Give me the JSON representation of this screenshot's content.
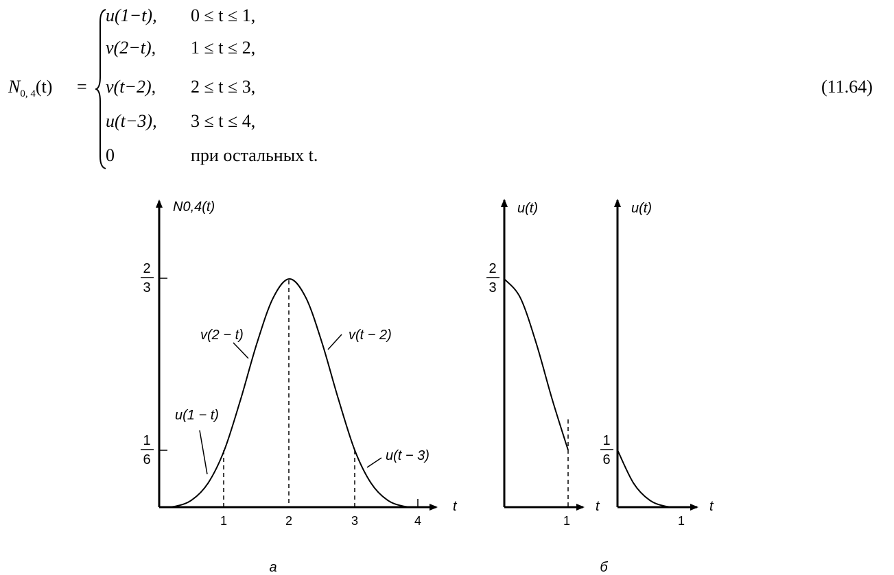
{
  "formula": {
    "lhs_func": "N",
    "lhs_sub": "0, 4",
    "lhs_arg": "(t)",
    "equals": "=",
    "cases": [
      {
        "expr": "u(1−t),",
        "cond": "0 ≤ t ≤ 1,"
      },
      {
        "expr": "v(2−t),",
        "cond": "1 ≤ t ≤ 2,"
      },
      {
        "expr": "v(t−2),",
        "cond": "2 ≤ t ≤ 3,"
      },
      {
        "expr": "u(t−3),",
        "cond": "3 ≤ t ≤ 4,"
      },
      {
        "expr": "0",
        "cond": "при остальных t."
      }
    ],
    "number": "(11.64)"
  },
  "plot_a": {
    "ylabel": "N0,4(t)",
    "xlabel": "t",
    "xticks": [
      "1",
      "2",
      "3",
      "4"
    ],
    "yticks": [
      {
        "num": "2",
        "den": "3"
      },
      {
        "num": "1",
        "den": "6"
      }
    ],
    "curve_labels": [
      "v(2 − t)",
      "v(t − 2)",
      "u(1 − t)",
      "u(t − 3)"
    ],
    "caption": "а"
  },
  "plot_b1": {
    "ylabel": "u(t)",
    "xlabel": "t",
    "xtick": "1",
    "ytick": {
      "num": "2",
      "den": "3"
    }
  },
  "plot_b2": {
    "ylabel": "u(t)",
    "xlabel": "t",
    "xtick": "1",
    "ytick": {
      "num": "1",
      "den": "6"
    }
  },
  "caption_b": "б",
  "chart_data": [
    {
      "type": "line",
      "title": "",
      "xlabel": "t",
      "ylabel": "N0,4(t)",
      "xlim": [
        0,
        4
      ],
      "ylim": [
        0,
        0.6667
      ],
      "series": [
        {
          "name": "u(1 − t)",
          "x": [
            0,
            0.25,
            0.5,
            0.75,
            1.0
          ],
          "y": [
            0,
            0.0026,
            0.0208,
            0.0703,
            0.1667
          ]
        },
        {
          "name": "v(2 − t)",
          "x": [
            1.0,
            1.25,
            1.5,
            1.75,
            2.0
          ],
          "y": [
            0.1667,
            0.3151,
            0.4792,
            0.612,
            0.6667
          ]
        },
        {
          "name": "v(t − 2)",
          "x": [
            2.0,
            2.25,
            2.5,
            2.75,
            3.0
          ],
          "y": [
            0.6667,
            0.612,
            0.4792,
            0.3151,
            0.1667
          ]
        },
        {
          "name": "u(t − 3)",
          "x": [
            3.0,
            3.25,
            3.5,
            3.75,
            4.0
          ],
          "y": [
            0.1667,
            0.0703,
            0.0208,
            0.0026,
            0
          ]
        }
      ]
    },
    {
      "type": "line",
      "title": "",
      "xlabel": "t",
      "ylabel": "u(t)",
      "xlim": [
        0,
        1
      ],
      "ylim": [
        0,
        0.6667
      ],
      "series": [
        {
          "x": [
            0,
            0.25,
            0.5,
            0.75,
            1.0
          ],
          "y": [
            0.6667,
            0.612,
            0.4792,
            0.3151,
            0.1667
          ]
        }
      ]
    },
    {
      "type": "line",
      "title": "",
      "xlabel": "t",
      "ylabel": "u(t)",
      "xlim": [
        0,
        1
      ],
      "ylim": [
        0,
        0.6667
      ],
      "series": [
        {
          "x": [
            0,
            0.25,
            0.5,
            0.75,
            1.0
          ],
          "y": [
            0.1667,
            0.0703,
            0.0208,
            0.0026,
            0
          ]
        }
      ]
    }
  ]
}
